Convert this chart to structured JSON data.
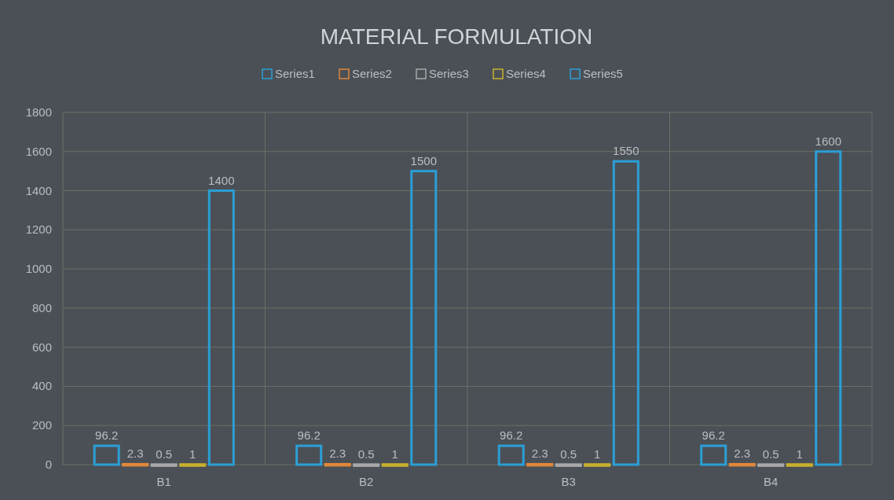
{
  "chart_data": {
    "type": "bar",
    "title": "MATERIAL FORMULATION",
    "categories": [
      "B1",
      "B2",
      "B3",
      "B4"
    ],
    "series": [
      {
        "name": "Series1",
        "color": "#2b9fd6",
        "values": [
          96.2,
          96.2,
          96.2,
          96.2
        ]
      },
      {
        "name": "Series2",
        "color": "#e0873a",
        "values": [
          2.3,
          2.3,
          2.3,
          2.3
        ]
      },
      {
        "name": "Series3",
        "color": "#a8a8a8",
        "values": [
          0.5,
          0.5,
          0.5,
          0.5
        ]
      },
      {
        "name": "Series4",
        "color": "#c9b12e",
        "values": [
          1,
          1,
          1,
          1
        ]
      },
      {
        "name": "Series5",
        "color": "#2b9fd6",
        "values": [
          1400,
          1500,
          1550,
          1600
        ]
      }
    ],
    "ylim": [
      0,
      1800
    ],
    "yticks": [
      0,
      200,
      400,
      600,
      800,
      1000,
      1200,
      1400,
      1600,
      1800
    ],
    "grid": true,
    "legend": "top",
    "data_labels": true
  }
}
